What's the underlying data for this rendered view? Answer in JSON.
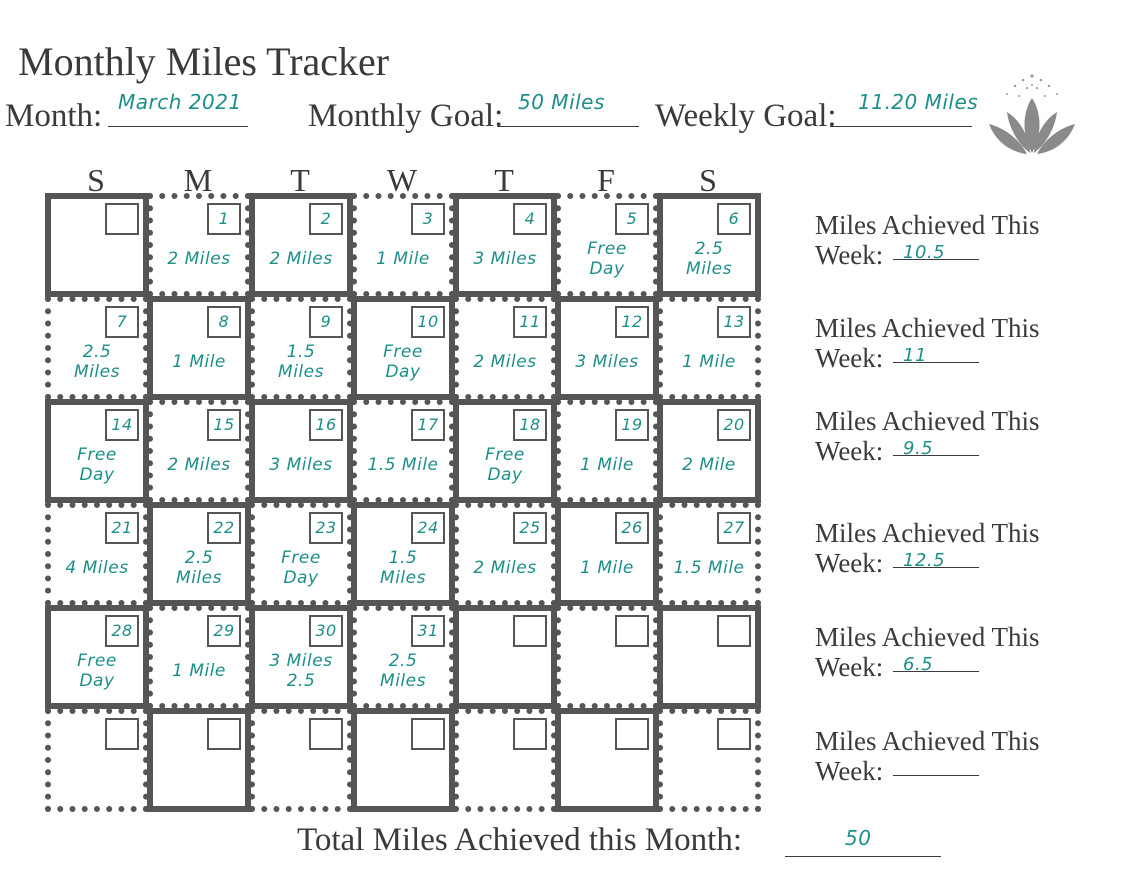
{
  "title": "Monthly Miles Tracker",
  "month": {
    "label": "Month:",
    "value": "March 2021"
  },
  "monthly_goal": {
    "label": "Monthly Goal:",
    "value": "50 Miles"
  },
  "weekly_goal": {
    "label": "Weekly Goal:",
    "value": "11.20 Miles"
  },
  "day_headers": [
    "S",
    "M",
    "T",
    "W",
    "T",
    "F",
    "S"
  ],
  "weeks": [
    [
      {
        "day": "",
        "entry": ""
      },
      {
        "day": "1",
        "entry": "2 Miles"
      },
      {
        "day": "2",
        "entry": "2 Miles"
      },
      {
        "day": "3",
        "entry": "1 Mile"
      },
      {
        "day": "4",
        "entry": "3 Miles"
      },
      {
        "day": "5",
        "entry": "Free\nDay"
      },
      {
        "day": "6",
        "entry": "2.5 Miles"
      }
    ],
    [
      {
        "day": "7",
        "entry": "2.5 Miles"
      },
      {
        "day": "8",
        "entry": "1 Mile"
      },
      {
        "day": "9",
        "entry": "1.5 Miles"
      },
      {
        "day": "10",
        "entry": "Free\nDay"
      },
      {
        "day": "11",
        "entry": "2 Miles"
      },
      {
        "day": "12",
        "entry": "3 Miles"
      },
      {
        "day": "13",
        "entry": "1 Mile"
      }
    ],
    [
      {
        "day": "14",
        "entry": "Free\nDay"
      },
      {
        "day": "15",
        "entry": "2 Miles"
      },
      {
        "day": "16",
        "entry": "3 Miles"
      },
      {
        "day": "17",
        "entry": "1.5 Mile"
      },
      {
        "day": "18",
        "entry": "Free\nDay"
      },
      {
        "day": "19",
        "entry": "1 Mile"
      },
      {
        "day": "20",
        "entry": "2 Mile"
      }
    ],
    [
      {
        "day": "21",
        "entry": "4 Miles"
      },
      {
        "day": "22",
        "entry": "2.5\nMiles"
      },
      {
        "day": "23",
        "entry": "Free\nDay"
      },
      {
        "day": "24",
        "entry": "1.5 Miles"
      },
      {
        "day": "25",
        "entry": "2 Miles"
      },
      {
        "day": "26",
        "entry": "1 Mile"
      },
      {
        "day": "27",
        "entry": "1.5 Mile"
      }
    ],
    [
      {
        "day": "28",
        "entry": "Free\nDay"
      },
      {
        "day": "29",
        "entry": "1 Mile"
      },
      {
        "day": "30",
        "entry": "3 Miles\n2.5"
      },
      {
        "day": "31",
        "entry": "2.5\nMiles"
      },
      {
        "day": "",
        "entry": ""
      },
      {
        "day": "",
        "entry": ""
      },
      {
        "day": "",
        "entry": ""
      }
    ],
    [
      {
        "day": "",
        "entry": ""
      },
      {
        "day": "",
        "entry": ""
      },
      {
        "day": "",
        "entry": ""
      },
      {
        "day": "",
        "entry": ""
      },
      {
        "day": "",
        "entry": ""
      },
      {
        "day": "",
        "entry": ""
      },
      {
        "day": "",
        "entry": ""
      }
    ]
  ],
  "weekly_summary_label_line1": "Miles Achieved This",
  "weekly_summary_label_line2": "Week:",
  "weekly_summary_values": [
    "10.5",
    "11",
    "9.5",
    "12.5",
    "6.5",
    ""
  ],
  "total": {
    "label": "Total Miles Achieved this Month:",
    "value": "50"
  },
  "colors": {
    "ink": "#1d8f8a",
    "grid": "#555555",
    "text": "#3a3a3a",
    "lotus": "#8a8a8a"
  },
  "logo_icon": "lotus-icon"
}
